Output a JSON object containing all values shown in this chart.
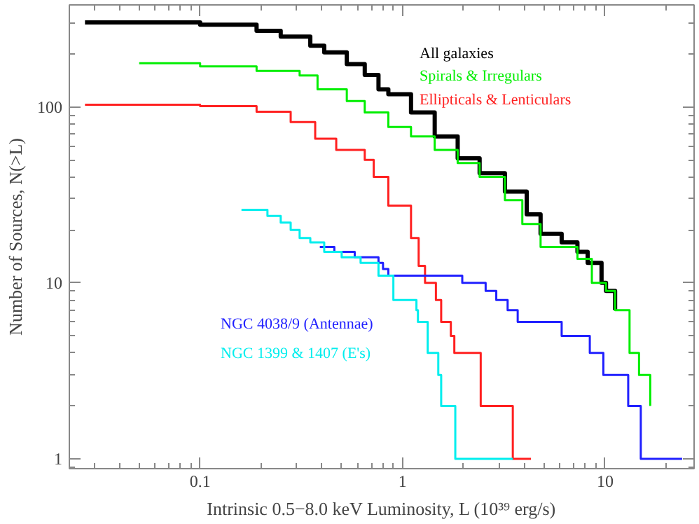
{
  "chart_data": {
    "type": "step",
    "xlabel": "Intrinsic 0.5−8.0 keV Luminosity, L (10³⁹ erg/s)",
    "ylabel": "Number of Sources, N(>L)",
    "log": "xy",
    "xlim": [
      0.0226,
      27.5
    ],
    "ylim": [
      0.88,
      380
    ],
    "xticks": [
      0.1,
      1,
      10
    ],
    "yticks": [
      1,
      10,
      100
    ],
    "grid": false,
    "line_style": "solid",
    "series": [
      {
        "name": "All galaxies",
        "color": "#000000",
        "x": [
          0.027,
          0.1,
          0.19,
          0.25,
          0.35,
          0.41,
          0.53,
          0.65,
          0.76,
          0.85,
          1.1,
          1.44,
          1.87,
          2.4,
          3.2,
          4.1,
          4.8,
          6.1,
          7.3,
          8.2,
          9.6,
          10.1,
          11.2
        ],
        "values": [
          302,
          293,
          271,
          251,
          223,
          204,
          175,
          152,
          126,
          118,
          93,
          68,
          51,
          42,
          33,
          24.5,
          19,
          17,
          15,
          13,
          10,
          9,
          7
        ]
      },
      {
        "name": "Spirals & Irregulars",
        "color": "#00ee00",
        "x": [
          0.05,
          0.1,
          0.19,
          0.31,
          0.38,
          0.53,
          0.65,
          0.85,
          1.1,
          1.44,
          1.87,
          2.4,
          3.2,
          3.9,
          4.8,
          7.3,
          8.6,
          10.1,
          11.2,
          13.2,
          14.7,
          16.7
        ],
        "values": [
          177,
          170,
          160,
          151,
          126,
          108,
          93,
          77,
          68,
          57,
          48,
          40,
          29.5,
          21.6,
          16,
          13.7,
          10,
          9,
          7,
          4,
          3,
          2
        ]
      },
      {
        "name": "Ellipticals & Lenticulars",
        "color": "#ff2020",
        "x": [
          0.027,
          0.1,
          0.19,
          0.28,
          0.37,
          0.47,
          0.65,
          0.72,
          0.85,
          1.1,
          1.2,
          1.29,
          1.46,
          1.55,
          1.73,
          1.8,
          2.43,
          3.5,
          4.3
        ],
        "values": [
          103,
          101,
          94,
          82,
          66,
          57,
          50,
          40,
          27.5,
          18,
          12.5,
          10,
          8,
          6,
          5,
          4,
          2,
          1,
          1
        ]
      },
      {
        "name": "NGC 4038/9 (Antennae)",
        "color": "#2020ff",
        "x": [
          0.39,
          0.46,
          0.58,
          0.76,
          0.8,
          0.85,
          1.97,
          2.57,
          2.9,
          3.3,
          3.7,
          6.1,
          8.4,
          9.8,
          13,
          15,
          24
        ],
        "values": [
          16,
          15,
          14,
          13,
          12,
          11,
          10,
          9,
          8,
          7,
          6,
          5,
          4,
          3,
          2,
          1,
          1
        ]
      },
      {
        "name": "NGC 1399 & 1407 (E's)",
        "color": "#00eeee",
        "x": [
          0.16,
          0.215,
          0.25,
          0.28,
          0.31,
          0.35,
          0.41,
          0.5,
          0.62,
          0.76,
          0.9,
          1.17,
          1.19,
          1.33,
          1.5,
          1.55,
          1.82,
          3.5
        ],
        "values": [
          26,
          24,
          22,
          20,
          18,
          17,
          15,
          14,
          13,
          11,
          8,
          7,
          6,
          4,
          3,
          2,
          1,
          1
        ]
      }
    ]
  }
}
